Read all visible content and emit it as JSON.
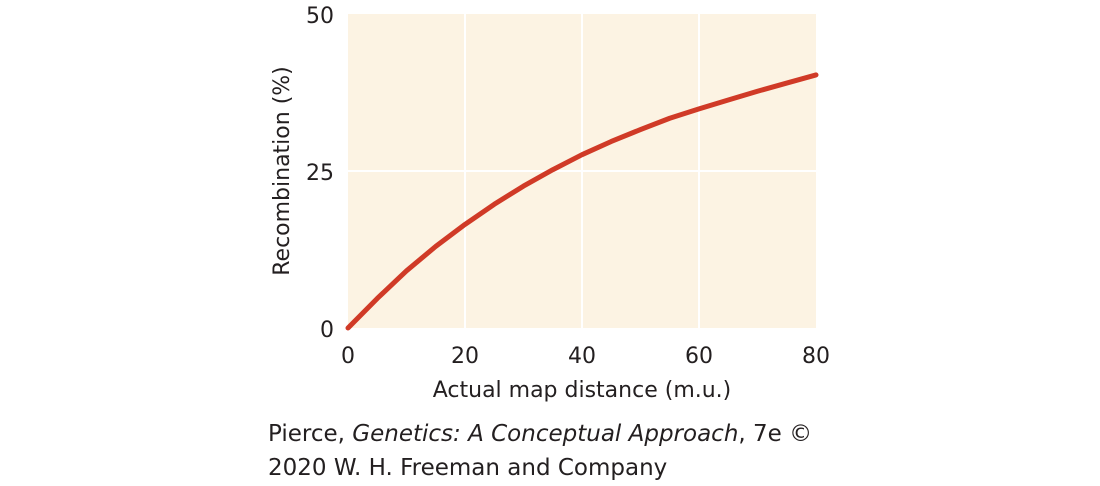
{
  "chart_data": {
    "type": "line",
    "title": "",
    "xlabel": "Actual map distance (m.u.)",
    "ylabel": "Recombination (%)",
    "xlim": [
      0,
      80
    ],
    "ylim": [
      0,
      50
    ],
    "x_ticks": [
      "0",
      "20",
      "40",
      "60",
      "80"
    ],
    "y_ticks": [
      "0",
      "25",
      "50"
    ],
    "grid": true,
    "legend": "none",
    "series": [
      {
        "x": [
          0,
          5,
          10,
          15,
          20,
          25,
          30,
          35,
          40,
          45,
          50,
          55,
          60,
          65,
          70,
          75,
          80
        ],
        "y": [
          0,
          4.7,
          9.1,
          13.0,
          16.5,
          19.7,
          22.6,
          25.2,
          27.6,
          29.7,
          31.6,
          33.4,
          34.9,
          36.3,
          37.7,
          39.0,
          40.3
        ]
      }
    ],
    "colors": {
      "plot_background": "#fcf3e3",
      "gridline": "#ffffff",
      "line": "#d03a27",
      "text": "#231f20"
    }
  },
  "credit": {
    "line1_prefix": "Pierce, ",
    "line1_title": "Genetics: A Conceptual Approach",
    "line1_suffix": ", 7e ©",
    "line2": "2020 W. H. Freeman and Company"
  }
}
